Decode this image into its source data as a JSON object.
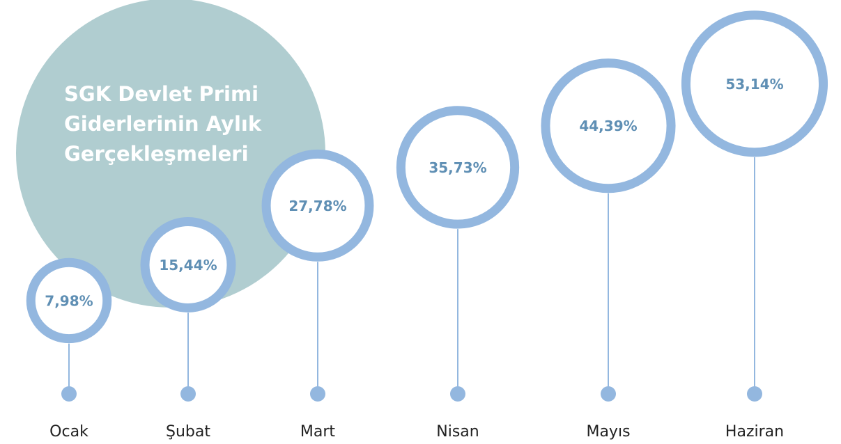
{
  "chart_data": {
    "type": "bubble",
    "title": "SGK Devlet Primi Giderlerinin Aylık Gerçekleşmeleri",
    "categories": [
      "Ocak",
      "Şubat",
      "Mart",
      "Nisan",
      "Mayıs",
      "Haziran"
    ],
    "values": [
      7.98,
      15.44,
      27.78,
      35.73,
      44.39,
      53.14
    ],
    "value_labels": [
      "7,98%",
      "15,44%",
      "27,78%",
      "35,73%",
      "44,39%",
      "53,14%"
    ],
    "color": "#93b7df"
  }
}
